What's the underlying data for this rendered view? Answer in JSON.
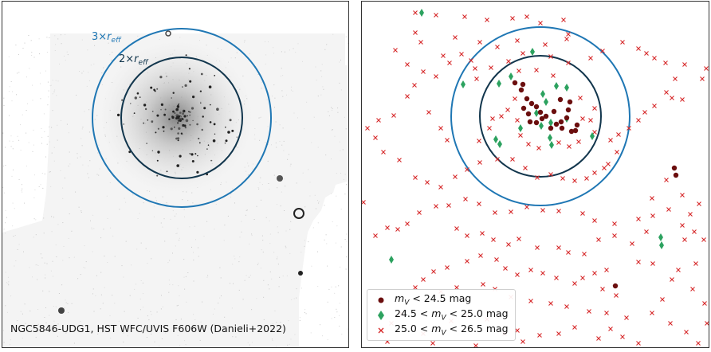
{
  "left_panel": {
    "caption": "NGC5846-UDG1, HST WFC/UVIS F606W (Danieli+2022)",
    "rings": [
      {
        "label": "3×",
        "sub": "r",
        "subscript": "eff",
        "color": "#1f77b4"
      },
      {
        "label": "2×",
        "sub": "r",
        "subscript": "eff",
        "color": "#12364d"
      }
    ]
  },
  "chart_data": {
    "type": "scatter",
    "rings": [
      {
        "name": "3× r_eff",
        "color": "#1f77b4"
      },
      {
        "name": "2× r_eff",
        "color": "#12364d"
      }
    ],
    "legend_position": "bottom-left",
    "series": [
      {
        "name": "m_V < 24.5 mag",
        "marker": "circle",
        "color": "#6b0e0e",
        "points": [
          [
            645,
            103
          ],
          [
            655,
            105
          ],
          [
            653,
            112
          ],
          [
            660,
            123
          ],
          [
            666,
            129
          ],
          [
            656,
            135
          ],
          [
            672,
            133
          ],
          [
            677,
            140
          ],
          [
            662,
            142
          ],
          [
            664,
            152
          ],
          [
            672,
            153
          ],
          [
            679,
            148
          ],
          [
            684,
            145
          ],
          [
            694,
            139
          ],
          [
            702,
            124
          ],
          [
            714,
            127
          ],
          [
            712,
            137
          ],
          [
            710,
            147
          ],
          [
            703,
            152
          ],
          [
            697,
            155
          ],
          [
            690,
            160
          ],
          [
            704,
            160
          ],
          [
            716,
            164
          ],
          [
            721,
            163
          ],
          [
            723,
            156
          ],
          [
            845,
            210
          ],
          [
            847,
            219
          ],
          [
            771,
            358
          ]
        ]
      },
      {
        "name": "24.5 < m_V < 25.0 mag",
        "marker": "diamond",
        "color": "#2ca25f",
        "points": [
          [
            528,
            15
          ],
          [
            667,
            64
          ],
          [
            640,
            95
          ],
          [
            625,
            104
          ],
          [
            580,
            105
          ],
          [
            680,
            117
          ],
          [
            697,
            107
          ],
          [
            710,
            109
          ],
          [
            684,
            127
          ],
          [
            672,
            141
          ],
          [
            710,
            148
          ],
          [
            690,
            153
          ],
          [
            678,
            157
          ],
          [
            652,
            160
          ],
          [
            742,
            170
          ],
          [
            689,
            172
          ],
          [
            621,
            174
          ],
          [
            626,
            180
          ],
          [
            691,
            181
          ],
          [
            828,
            297
          ],
          [
            829,
            307
          ],
          [
            490,
            325
          ]
        ]
      },
      {
        "name": "25.0 < m_V < 26.5 mag",
        "marker": "x",
        "color": "#d62728",
        "points": [
          [
            520,
            15
          ],
          [
            546,
            18
          ],
          [
            582,
            20
          ],
          [
            610,
            24
          ],
          [
            642,
            22
          ],
          [
            660,
            20
          ],
          [
            677,
            28
          ],
          [
            706,
            24
          ],
          [
            712,
            42
          ],
          [
            710,
            48
          ],
          [
            683,
            55
          ],
          [
            648,
            50
          ],
          [
            601,
            52
          ],
          [
            570,
            46
          ],
          [
            527,
            52
          ],
          [
            520,
            40
          ],
          [
            495,
            62
          ],
          [
            510,
            80
          ],
          [
            530,
            89
          ],
          [
            546,
            95
          ],
          [
            555,
            69
          ],
          [
            563,
            78
          ],
          [
            578,
            67
          ],
          [
            590,
            75
          ],
          [
            595,
            85
          ],
          [
            597,
            98
          ],
          [
            615,
            84
          ],
          [
            623,
            58
          ],
          [
            637,
            76
          ],
          [
            655,
            66
          ],
          [
            672,
            87
          ],
          [
            690,
            70
          ],
          [
            712,
            78
          ],
          [
            740,
            72
          ],
          [
            755,
            63
          ],
          [
            780,
            52
          ],
          [
            800,
            60
          ],
          [
            810,
            66
          ],
          [
            820,
            72
          ],
          [
            834,
            78
          ],
          [
            858,
            80
          ],
          [
            885,
            85
          ],
          [
            880,
            98
          ],
          [
            846,
            98
          ],
          [
            835,
            115
          ],
          [
            842,
            122
          ],
          [
            855,
            124
          ],
          [
            820,
            132
          ],
          [
            808,
            140
          ],
          [
            800,
            150
          ],
          [
            788,
            160
          ],
          [
            775,
            168
          ],
          [
            765,
            175
          ],
          [
            773,
            190
          ],
          [
            762,
            205
          ],
          [
            757,
            210
          ],
          [
            745,
            216
          ],
          [
            735,
            223
          ],
          [
            720,
            226
          ],
          [
            705,
            223
          ],
          [
            690,
            218
          ],
          [
            673,
            222
          ],
          [
            658,
            210
          ],
          [
            642,
            199
          ],
          [
            623,
            199
          ],
          [
            601,
            203
          ],
          [
            585,
            212
          ],
          [
            570,
            221
          ],
          [
            552,
            234
          ],
          [
            535,
            228
          ],
          [
            520,
            222
          ],
          [
            500,
            200
          ],
          [
            480,
            190
          ],
          [
            470,
            172
          ],
          [
            460,
            160
          ],
          [
            474,
            150
          ],
          [
            493,
            144
          ],
          [
            510,
            120
          ],
          [
            519,
            106
          ],
          [
            537,
            140
          ],
          [
            552,
            160
          ],
          [
            560,
            175
          ],
          [
            600,
            176
          ],
          [
            613,
            160
          ],
          [
            617,
            148
          ],
          [
            628,
            145
          ],
          [
            636,
            137
          ],
          [
            645,
            123
          ],
          [
            648,
            150
          ],
          [
            652,
            169
          ],
          [
            662,
            180
          ],
          [
            675,
            185
          ],
          [
            700,
            178
          ],
          [
            713,
            183
          ],
          [
            725,
            177
          ],
          [
            745,
            165
          ],
          [
            740,
            150
          ],
          [
            730,
            148
          ],
          [
            745,
            135
          ],
          [
            727,
            122
          ],
          [
            693,
            94
          ],
          [
            650,
            88
          ],
          [
            817,
            248
          ],
          [
            835,
            225
          ],
          [
            855,
            244
          ],
          [
            838,
            262
          ],
          [
            818,
            270
          ],
          [
            800,
            274
          ],
          [
            770,
            280
          ],
          [
            745,
            276
          ],
          [
            730,
            267
          ],
          [
            700,
            264
          ],
          [
            680,
            263
          ],
          [
            660,
            259
          ],
          [
            640,
            265
          ],
          [
            620,
            266
          ],
          [
            600,
            255
          ],
          [
            583,
            249
          ],
          [
            562,
            257
          ],
          [
            546,
            258
          ],
          [
            525,
            266
          ],
          [
            510,
            280
          ],
          [
            498,
            287
          ],
          [
            485,
            285
          ],
          [
            470,
            295
          ],
          [
            455,
            253
          ],
          [
            572,
            286
          ],
          [
            585,
            295
          ],
          [
            604,
            292
          ],
          [
            618,
            300
          ],
          [
            637,
            306
          ],
          [
            650,
            299
          ],
          [
            673,
            310
          ],
          [
            700,
            310
          ],
          [
            712,
            316
          ],
          [
            732,
            318
          ],
          [
            750,
            300
          ],
          [
            770,
            295
          ],
          [
            792,
            305
          ],
          [
            810,
            290
          ],
          [
            855,
            282
          ],
          [
            870,
            290
          ],
          [
            882,
            300
          ],
          [
            872,
            330
          ],
          [
            850,
            338
          ],
          [
            818,
            330
          ],
          [
            800,
            328
          ],
          [
            760,
            338
          ],
          [
            745,
            342
          ],
          [
            730,
            348
          ],
          [
            720,
            355
          ],
          [
            697,
            348
          ],
          [
            680,
            342
          ],
          [
            665,
            338
          ],
          [
            648,
            344
          ],
          [
            633,
            336
          ],
          [
            622,
            325
          ],
          [
            602,
            320
          ],
          [
            585,
            327
          ],
          [
            560,
            335
          ],
          [
            543,
            340
          ],
          [
            530,
            350
          ],
          [
            520,
            360
          ],
          [
            552,
            365
          ],
          [
            572,
            360
          ],
          [
            605,
            356
          ],
          [
            620,
            362
          ],
          [
            640,
            372
          ],
          [
            665,
            377
          ],
          [
            690,
            380
          ],
          [
            710,
            384
          ],
          [
            738,
            390
          ],
          [
            760,
            392
          ],
          [
            785,
            398
          ],
          [
            755,
            362
          ],
          [
            772,
            370
          ],
          [
            817,
            392
          ],
          [
            840,
            405
          ],
          [
            860,
            416
          ],
          [
            875,
            430
          ],
          [
            800,
            430
          ],
          [
            780,
            422
          ],
          [
            750,
            424
          ],
          [
            720,
            410
          ],
          [
            700,
            418
          ],
          [
            676,
            420
          ],
          [
            655,
            428
          ],
          [
            648,
            414
          ],
          [
            610,
            400
          ],
          [
            583,
            395
          ],
          [
            565,
            402
          ],
          [
            503,
            393
          ],
          [
            490,
            405
          ],
          [
            485,
            428
          ],
          [
            530,
            418
          ],
          [
            542,
            430
          ],
          [
            596,
            433
          ],
          [
            632,
            418
          ],
          [
            765,
            412
          ],
          [
            830,
            375
          ],
          [
            842,
            350
          ],
          [
            868,
            362
          ],
          [
            883,
            380
          ],
          [
            886,
            405
          ],
          [
            858,
            300
          ],
          [
            865,
            268
          ],
          [
            876,
            255
          ]
        ]
      }
    ]
  }
}
